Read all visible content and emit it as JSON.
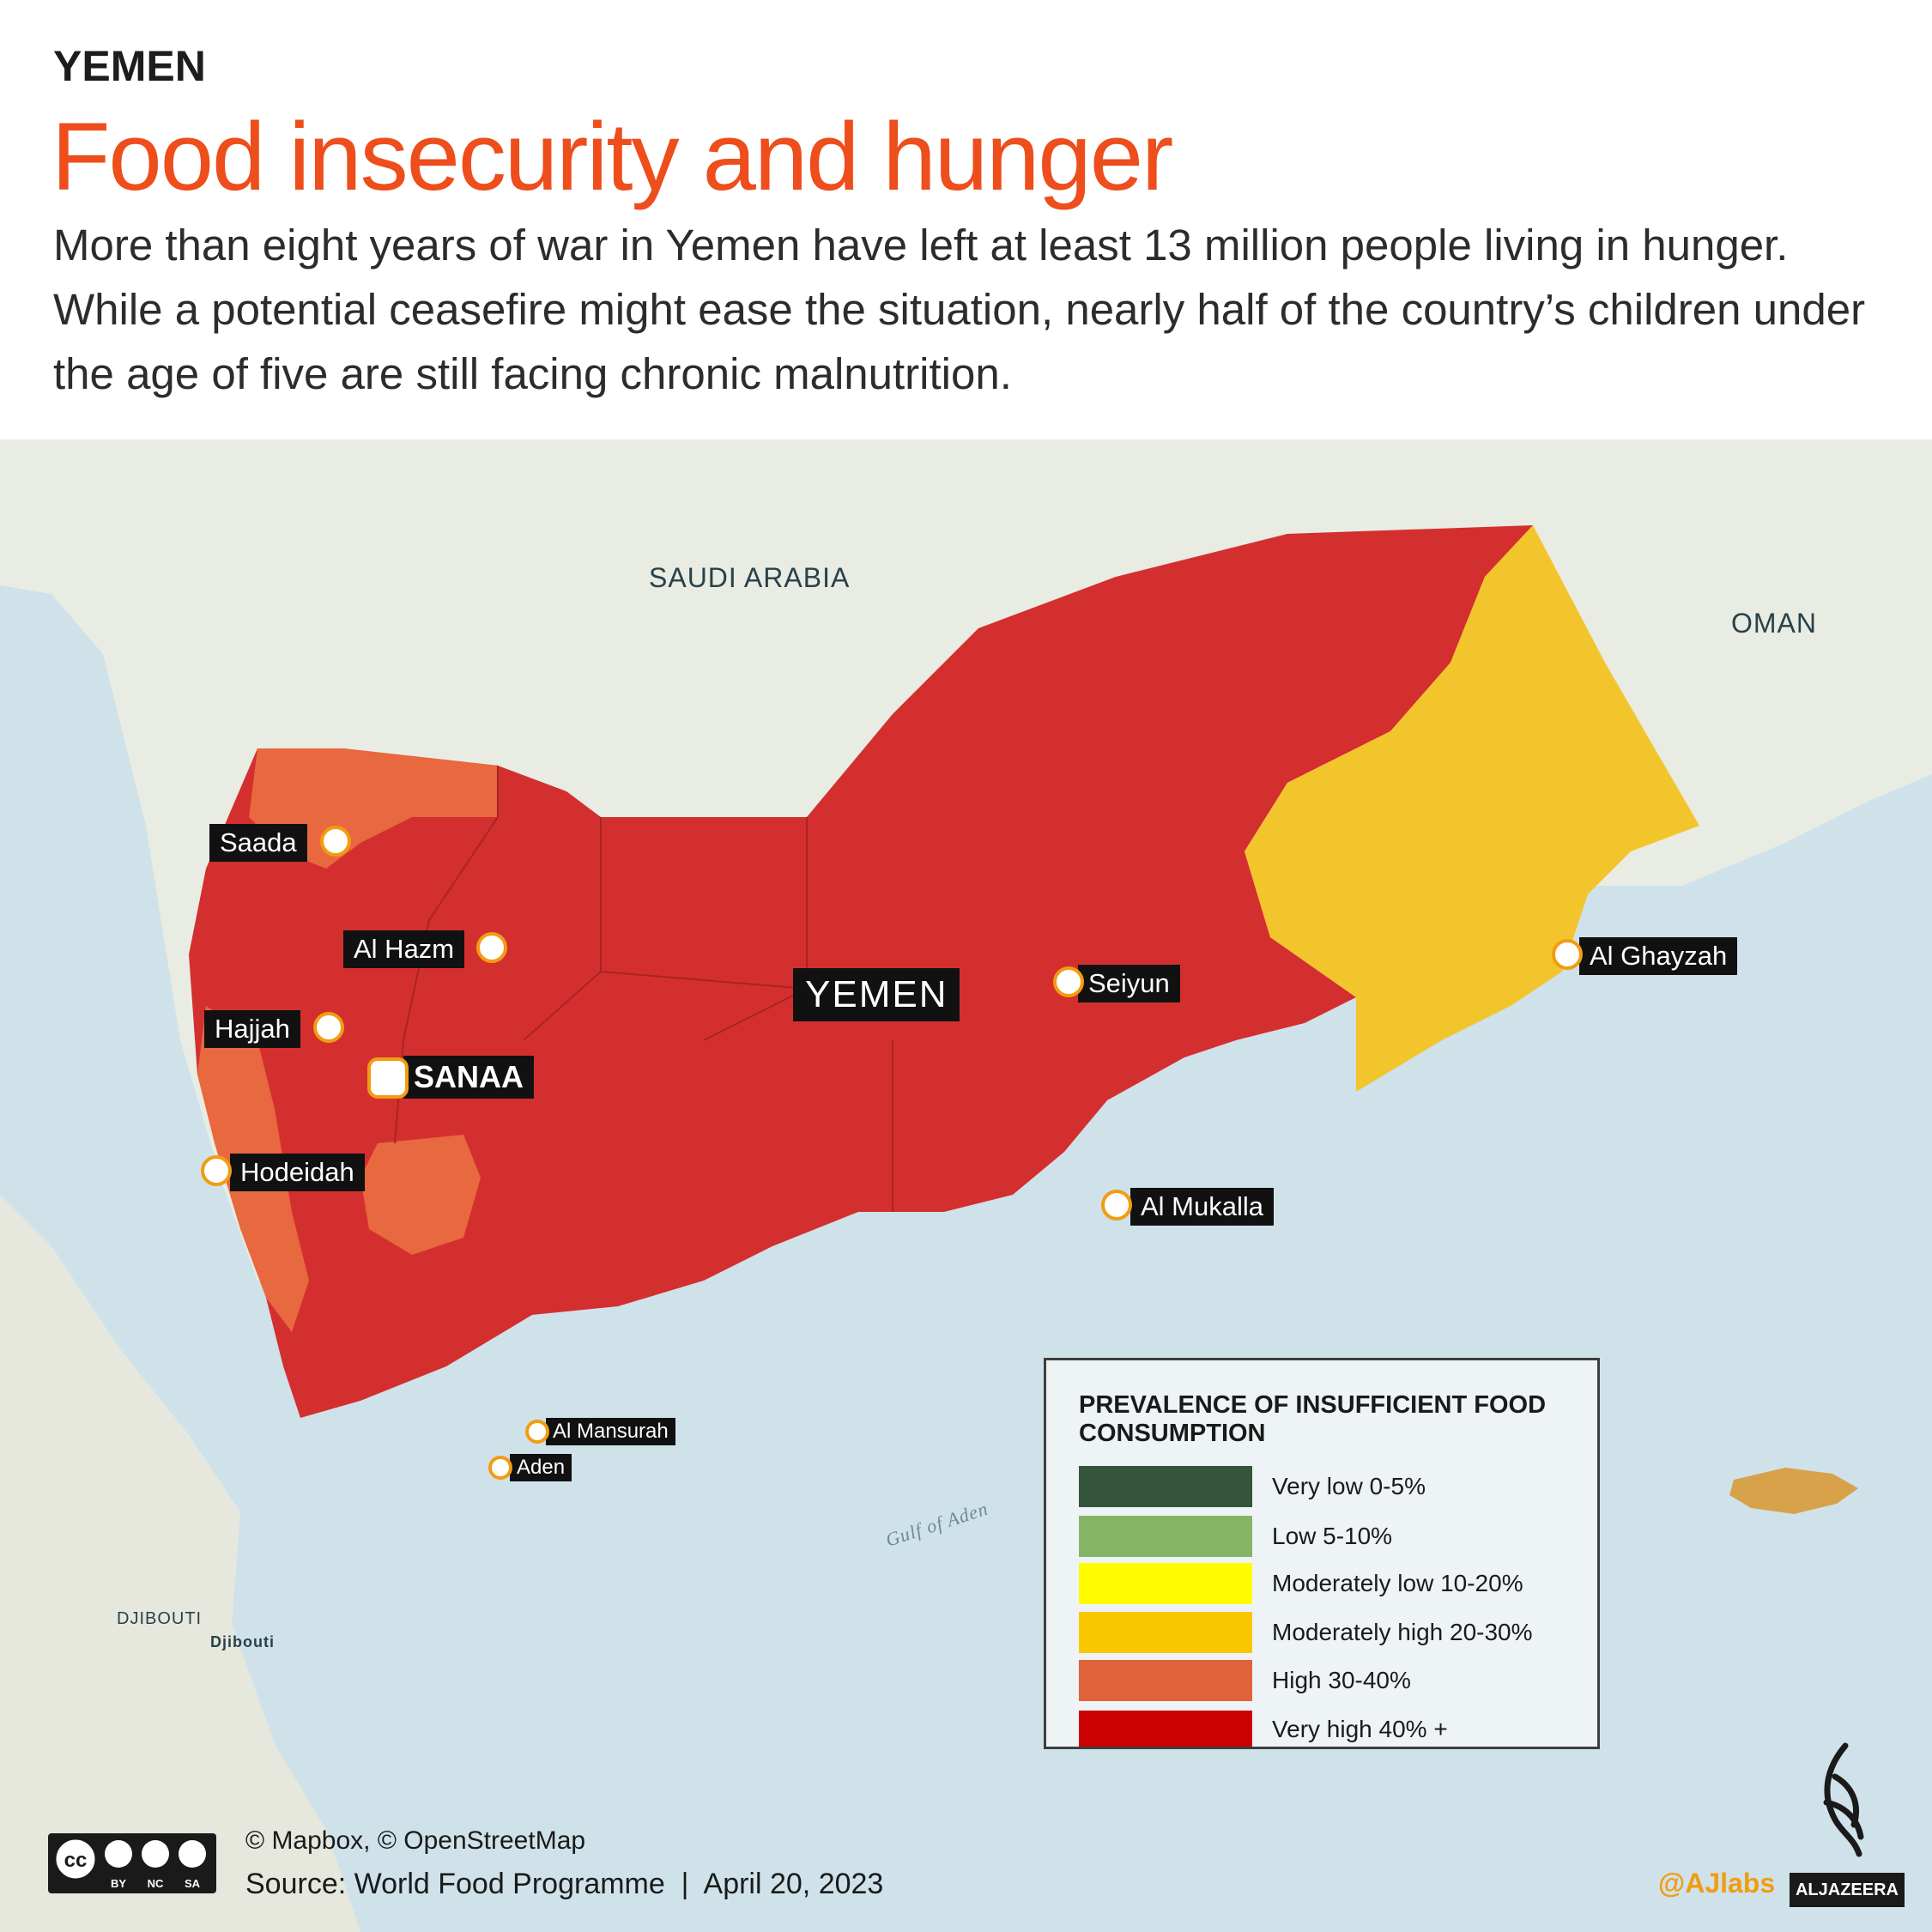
{
  "header": {
    "kicker": "YEMEN",
    "title": "Food insecurity and hunger",
    "subtitle": "More than eight years of war in Yemen have left at least 13 million people living in hunger. While a potential ceasefire might ease the situation, nearly half of the country’s children under the age of five are still facing chronic malnutrition."
  },
  "map": {
    "country_labels": {
      "saudi_arabia": "SAUDI ARABIA",
      "oman": "OMAN",
      "djibouti": "DJIBOUTI",
      "djibouti_city": "Djibouti",
      "gulf_of_aden": "Gulf of Aden"
    },
    "country_name": "YEMEN",
    "capital": "SANAA",
    "cities": {
      "saada": "Saada",
      "al_hazm": "Al Hazm",
      "hajjah": "Hajjah",
      "hodeidah": "Hodeidah",
      "seiyun": "Seiyun",
      "al_ghayzah": "Al Ghayzah",
      "al_mukalla": "Al Mukalla",
      "al_mansurah": "Al Mansurah",
      "aden": "Aden"
    },
    "colors": {
      "very_high": "#d42f2f",
      "high": "#e8683f",
      "moderately_high": "#f3c52c",
      "sea": "#cfe2ea",
      "land": "#e9ece2"
    }
  },
  "legend": {
    "title": "PREVALENCE OF INSUFFICIENT FOOD CONSUMPTION",
    "items": [
      {
        "label": "Very low 0-5%",
        "color": "#34543c"
      },
      {
        "label": "Low 5-10%",
        "color": "#86b466"
      },
      {
        "label": "Moderately low 10-20%",
        "color": "#fffb00"
      },
      {
        "label": "Moderately high 20-30%",
        "color": "#f9c700"
      },
      {
        "label": "High 30-40%",
        "color": "#e06238"
      },
      {
        "label": "Very high 40% +",
        "color": "#cc0000"
      }
    ]
  },
  "footer": {
    "attribution": "© Mapbox, © OpenStreetMap",
    "source": "Source: World Food Programme  |  April 20, 2023",
    "cc_labels": [
      "BY",
      "NC",
      "SA"
    ],
    "handle": "@AJlabs",
    "brand": "ALJAZEERA"
  }
}
